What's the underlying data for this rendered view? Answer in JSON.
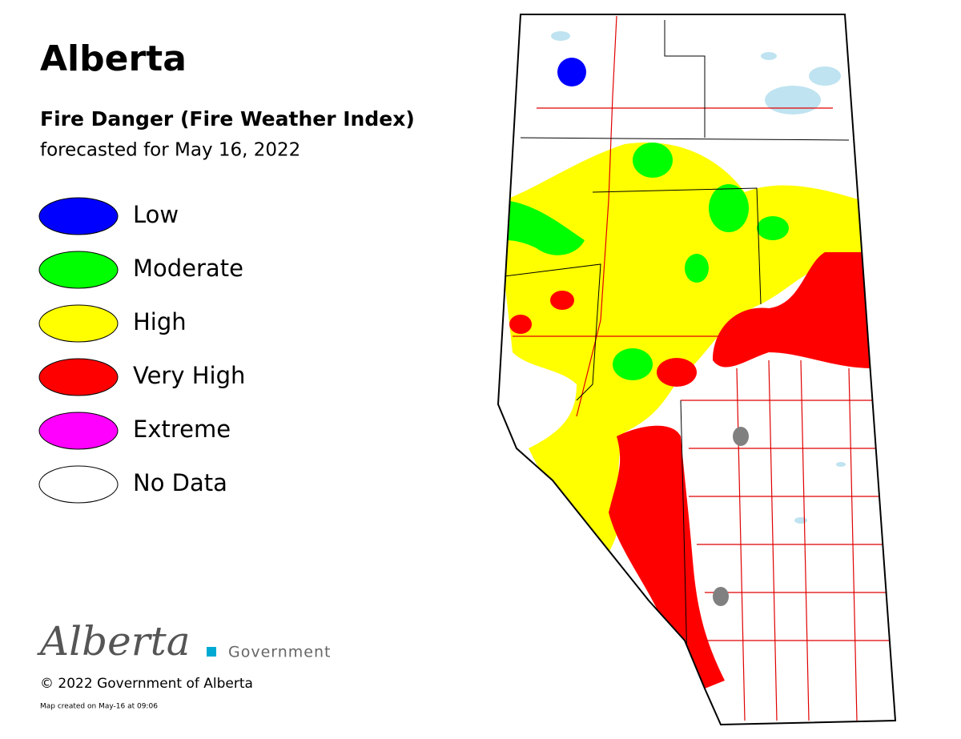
{
  "header": {
    "title": "Alberta",
    "subtitle": "Fire Danger (Fire Weather Index)",
    "forecast": "forecasted for May 16, 2022"
  },
  "legend": [
    {
      "label": "Low",
      "color": "#0000ff"
    },
    {
      "label": "Moderate",
      "color": "#00ff00"
    },
    {
      "label": "High",
      "color": "#ffff00"
    },
    {
      "label": "Very High",
      "color": "#ff0000"
    },
    {
      "label": "Extreme",
      "color": "#ff00ff"
    },
    {
      "label": "No Data",
      "color": "#ffffff"
    }
  ],
  "footer": {
    "logo": "Alberta",
    "logo_suffix": "Government",
    "copyright": "© 2022 Government of Alberta",
    "created": "Map created on May-16 at 09:06"
  }
}
